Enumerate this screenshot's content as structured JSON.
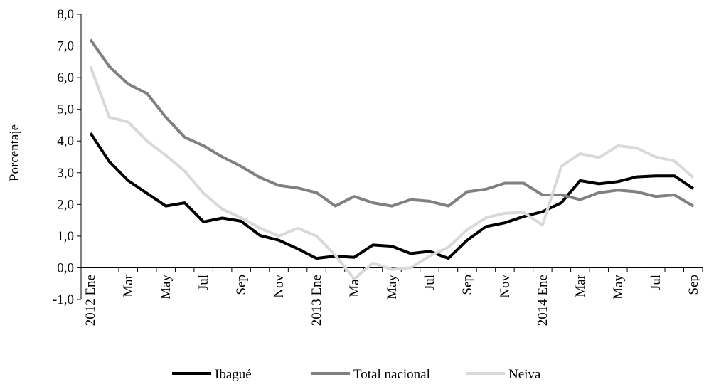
{
  "chart_data": {
    "type": "line",
    "y_label": "Porcentaje",
    "categories": [
      "2012 Ene",
      null,
      "Mar",
      null,
      "May",
      null,
      "Jul",
      null,
      "Sep",
      null,
      "Nov",
      null,
      "2013 Ene",
      null,
      "Mar",
      null,
      "May",
      null,
      "Jul",
      null,
      "Sep",
      null,
      "Nov",
      null,
      "2014 Ene",
      null,
      "Mar",
      null,
      "May",
      null,
      "Jul",
      null,
      "Sep"
    ],
    "series": [
      {
        "name": "Ibagué",
        "color": "#000000",
        "values": [
          4.25,
          3.35,
          2.75,
          2.35,
          1.95,
          2.05,
          1.45,
          1.57,
          1.47,
          1.02,
          0.87,
          0.6,
          0.3,
          0.37,
          0.33,
          0.72,
          0.68,
          0.45,
          0.52,
          0.3,
          0.87,
          1.3,
          1.42,
          1.62,
          1.77,
          2.05,
          2.75,
          2.65,
          2.72,
          2.87,
          2.9,
          2.9,
          2.5
        ]
      },
      {
        "name": "Total nacional",
        "color": "#808080",
        "values": [
          7.2,
          6.35,
          5.8,
          5.5,
          4.75,
          4.12,
          3.85,
          3.5,
          3.2,
          2.85,
          2.6,
          2.52,
          2.37,
          1.95,
          2.25,
          2.05,
          1.95,
          2.15,
          2.1,
          1.95,
          2.4,
          2.48,
          2.67,
          2.67,
          2.3,
          2.3,
          2.15,
          2.37,
          2.45,
          2.4,
          2.25,
          2.3,
          1.95
        ]
      },
      {
        "name": "Neiva",
        "color": "#d9d9d9",
        "values": [
          6.35,
          4.75,
          4.6,
          4.0,
          3.55,
          3.05,
          2.35,
          1.85,
          1.58,
          1.25,
          1.0,
          1.25,
          1.0,
          0.4,
          -0.35,
          0.15,
          -0.05,
          0.0,
          0.37,
          0.65,
          1.2,
          1.58,
          1.72,
          1.75,
          1.35,
          3.2,
          3.6,
          3.48,
          3.85,
          3.78,
          3.5,
          3.37,
          2.85
        ]
      }
    ],
    "ylim": [
      -1,
      8
    ],
    "yticks": [
      {
        "value": -1,
        "label": "-1,0"
      },
      {
        "value": 0,
        "label": "0,0"
      },
      {
        "value": 1,
        "label": "1,0"
      },
      {
        "value": 2,
        "label": "2,0"
      },
      {
        "value": 3,
        "label": "3,0"
      },
      {
        "value": 4,
        "label": "4,0"
      },
      {
        "value": 5,
        "label": "5,0"
      },
      {
        "value": 6,
        "label": "6,0"
      },
      {
        "value": 7,
        "label": "7,0"
      },
      {
        "value": 8,
        "label": "8,0"
      }
    ],
    "legend": "bottom"
  }
}
